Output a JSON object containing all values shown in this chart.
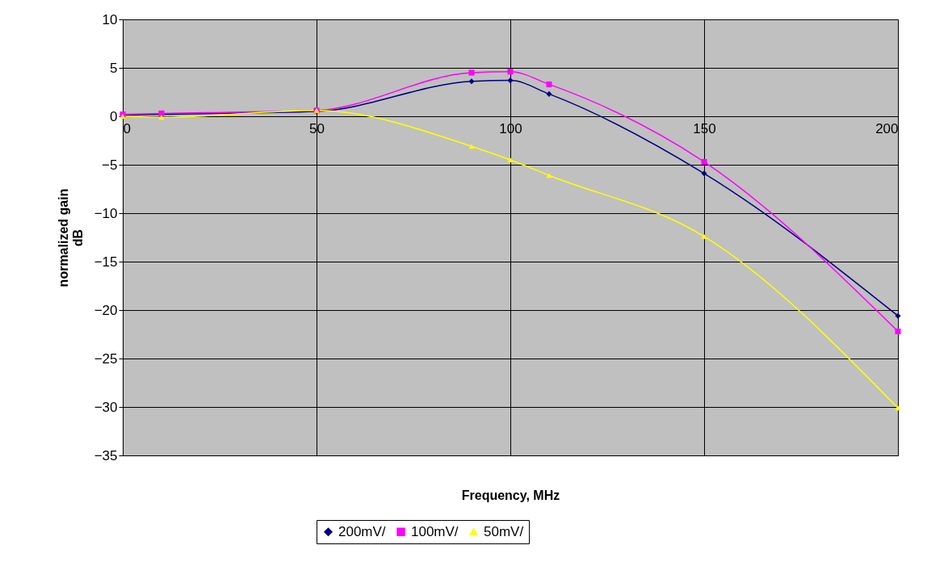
{
  "chart_data": {
    "type": "line",
    "xlabel": "Frequency, MHz",
    "ylabel": "normalized gain dB",
    "x": [
      0,
      10,
      50,
      90,
      100,
      110,
      150,
      200
    ],
    "series": [
      {
        "name": "200mV/",
        "color": "#000080",
        "marker": "diamond",
        "values": [
          0.1,
          0.2,
          0.5,
          3.6,
          3.7,
          2.3,
          -5.9,
          -20.6
        ]
      },
      {
        "name": "100mV/",
        "color": "#ff00ff",
        "marker": "square",
        "values": [
          0.2,
          0.3,
          0.6,
          4.5,
          4.6,
          3.3,
          -4.7,
          -22.2
        ]
      },
      {
        "name": "50mV/",
        "color": "#ffff00",
        "marker": "triangle",
        "values": [
          0,
          -0.1,
          0.6,
          -3.1,
          -4.5,
          -6.1,
          -12.4,
          -30.1
        ]
      }
    ],
    "xlim": [
      0,
      200
    ],
    "xticks": [
      0,
      50,
      100,
      150,
      200
    ],
    "ylim": [
      -35,
      10
    ],
    "yticks": [
      -35,
      -30,
      -25,
      -20,
      -15,
      -10,
      -5,
      0,
      5,
      10
    ],
    "grid": true,
    "legend": "bottom"
  }
}
